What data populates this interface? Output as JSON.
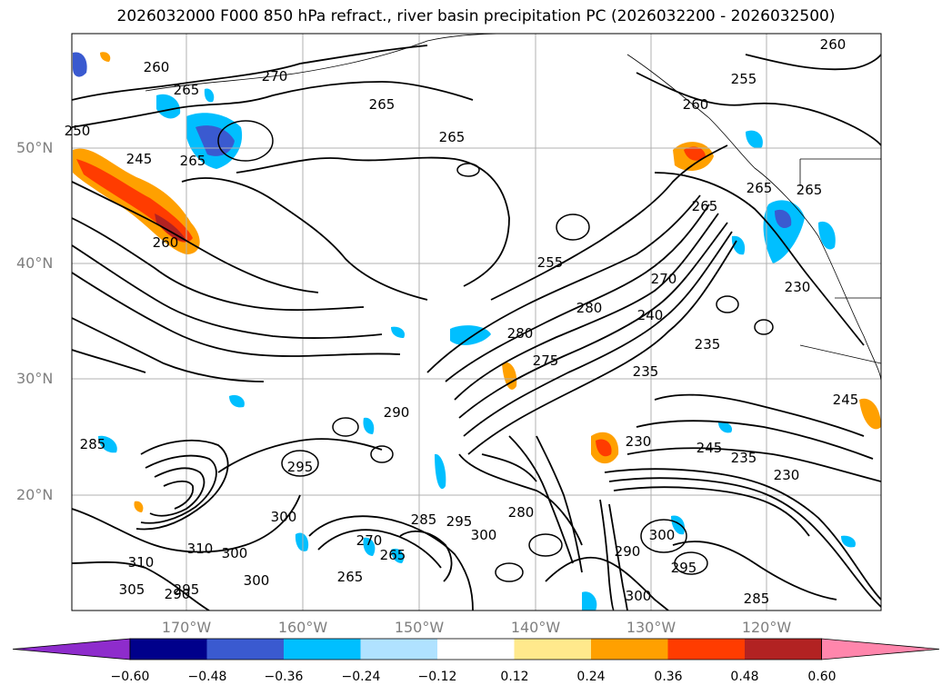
{
  "title": "2026032000 F000 850 hPa refract., river basin precipitation PC (2026032200 - 2026032500)",
  "lat_labels": [
    "50°N",
    "40°N",
    "30°N",
    "20°N"
  ],
  "lon_labels": [
    "170°W",
    "160°W",
    "150°W",
    "140°W",
    "130°W",
    "120°W"
  ],
  "contour_labels": [
    "260",
    "265",
    "270",
    "265",
    "265",
    "255",
    "260",
    "250",
    "245",
    "265",
    "260",
    "255",
    "265",
    "265",
    "280",
    "260",
    "265",
    "280",
    "270",
    "275",
    "240",
    "235",
    "235",
    "230",
    "230",
    "235",
    "245",
    "245",
    "290",
    "295",
    "285",
    "310",
    "300",
    "310",
    "305",
    "295",
    "290",
    "300",
    "265",
    "270",
    "285",
    "265",
    "280",
    "295",
    "300",
    "300",
    "290",
    "295",
    "300",
    "300",
    "230",
    "285"
  ],
  "colorbar": {
    "tick_labels": [
      "−0.60",
      "−0.48",
      "−0.36",
      "−0.24",
      "−0.12",
      "0.12",
      "0.24",
      "0.36",
      "0.48",
      "0.60"
    ],
    "colors": [
      "#8e2ccc",
      "#00008b",
      "#3a5ad0",
      "#00bfff",
      "#b0e2ff",
      "#ffffff",
      "#ffe98c",
      "#ffa000",
      "#ff3c00",
      "#b22222",
      "#ff86ac"
    ]
  },
  "colors": {
    "land_line": "#000000",
    "grid": "#b0b0b0",
    "axis_label": "#7f7f7f"
  }
}
